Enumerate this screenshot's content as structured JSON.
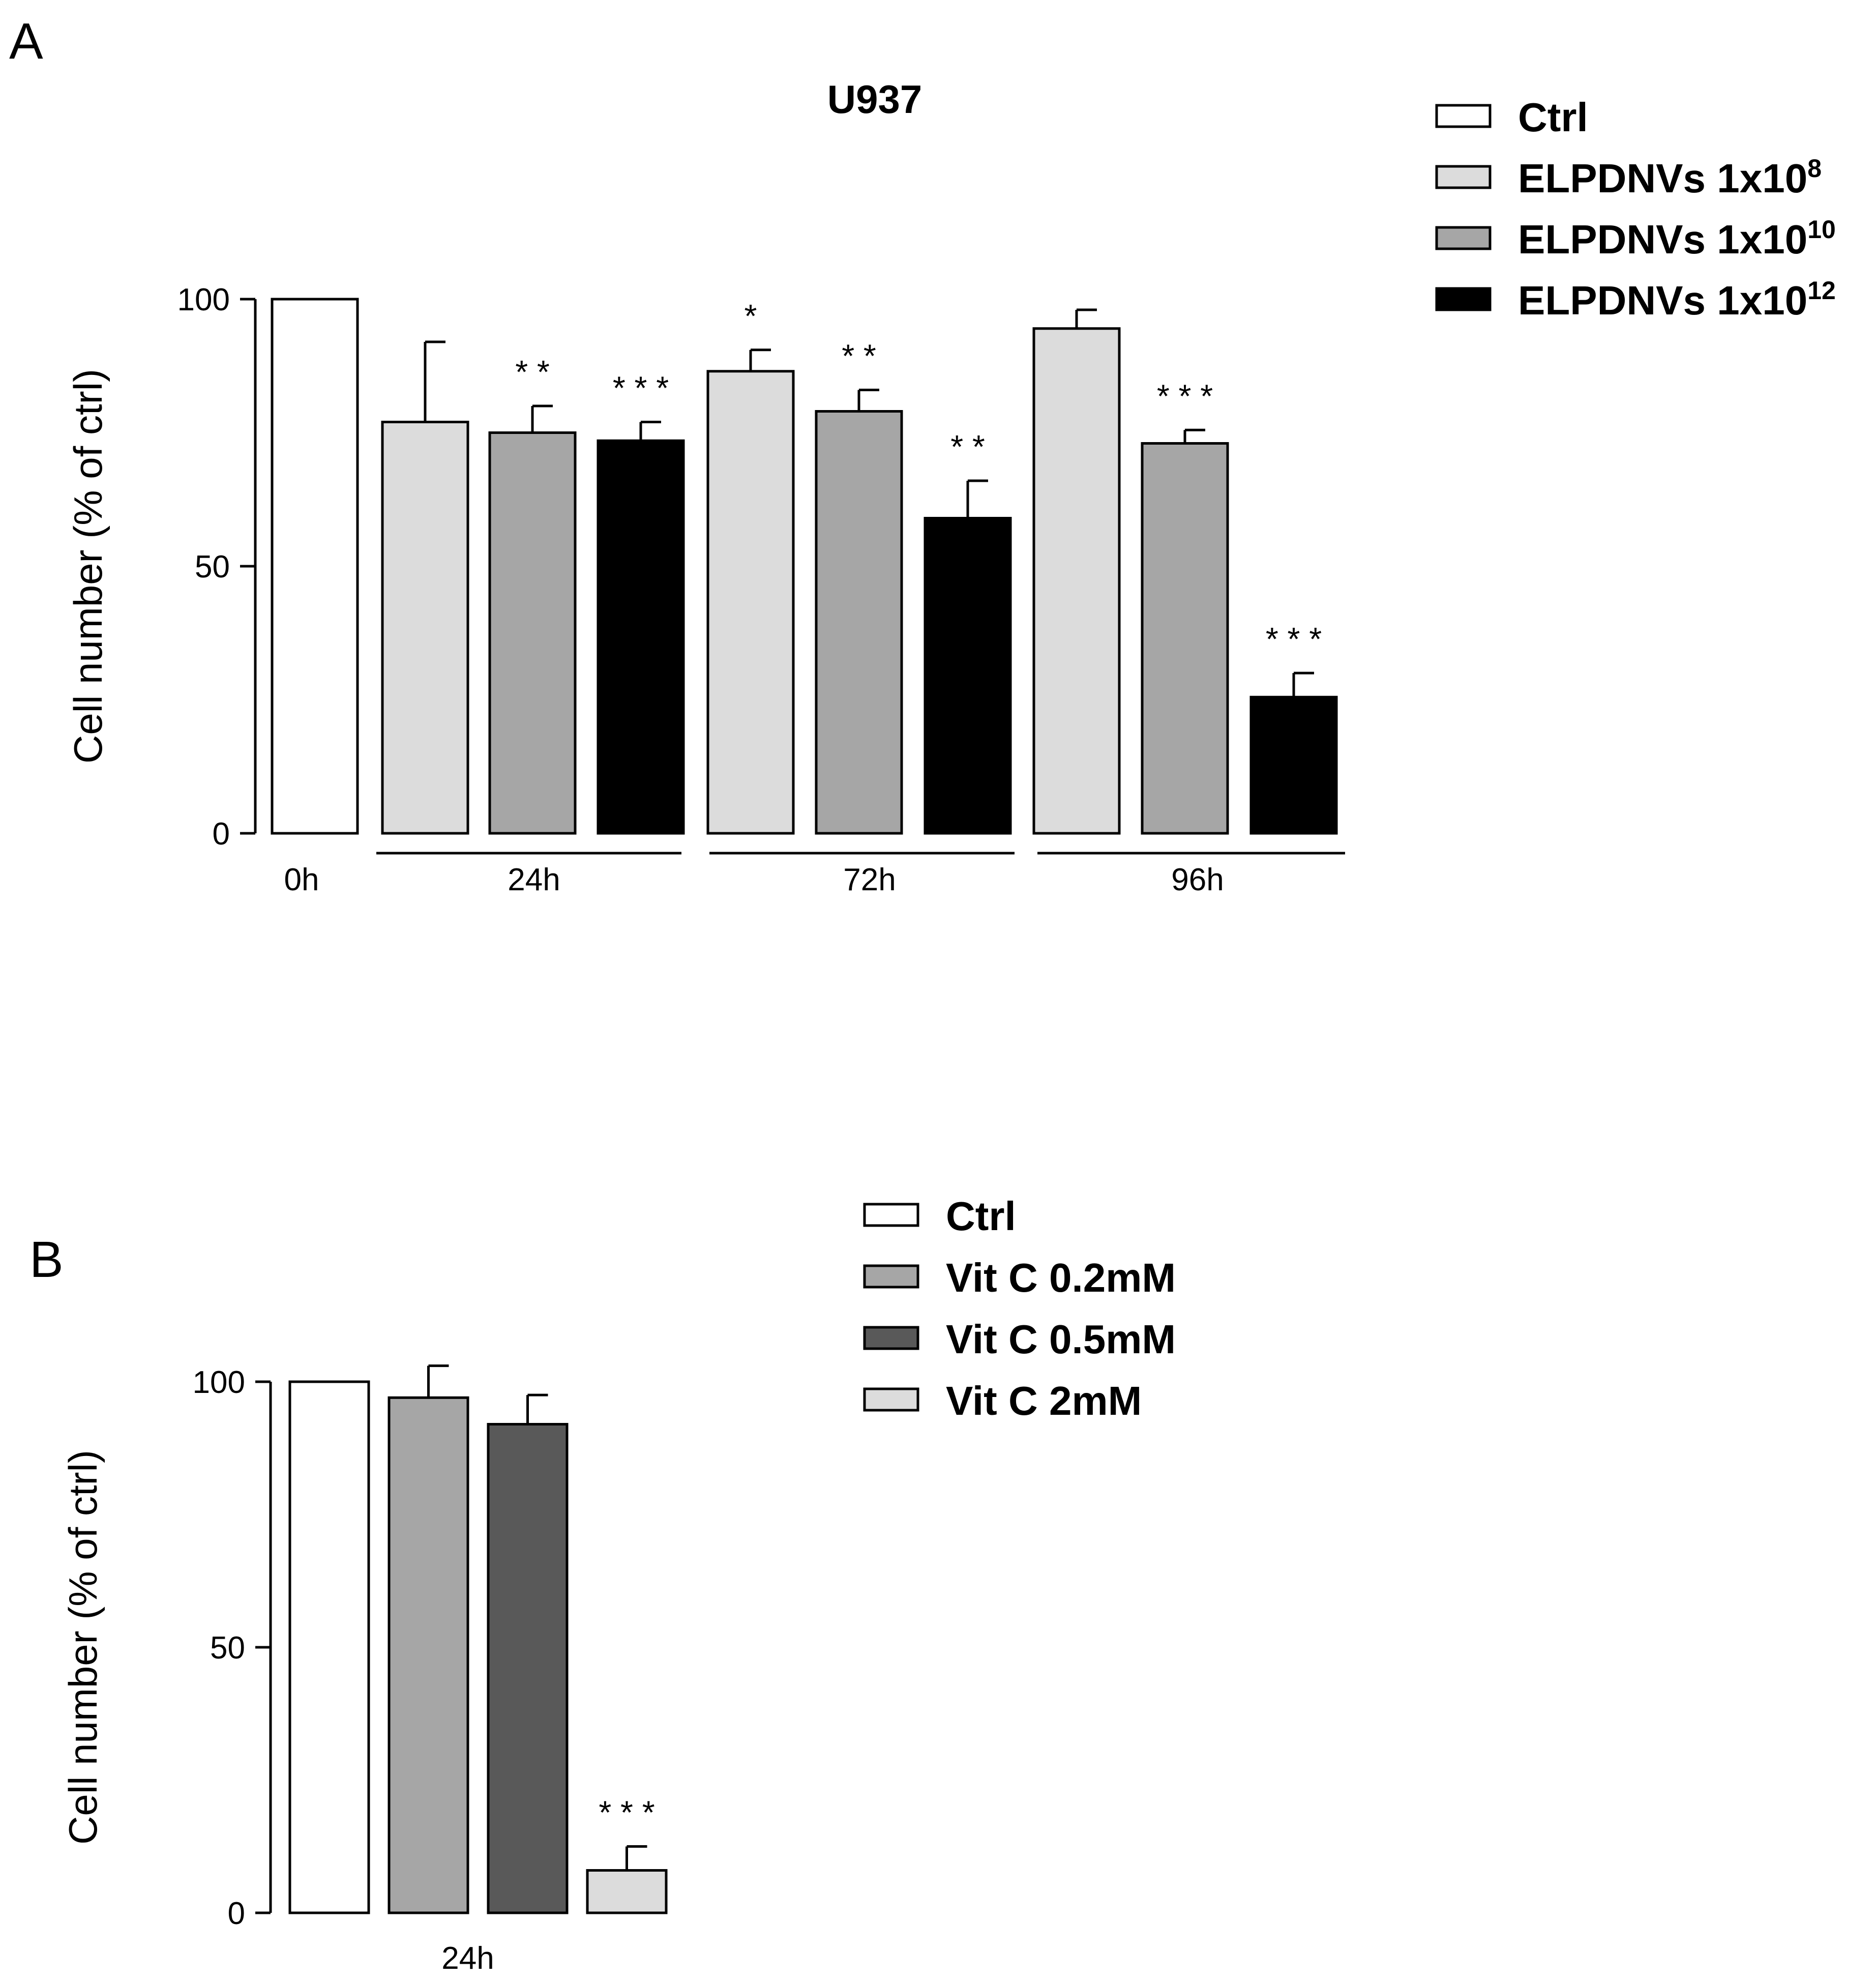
{
  "chart_data": [
    {
      "panel_label": "A",
      "type": "bar",
      "title": "U937",
      "ylabel": "Cell number (% of ctrl)",
      "ylim": [
        0,
        100
      ],
      "yticks": [
        "0",
        "50",
        "100"
      ],
      "groups": [
        "0h",
        "24h",
        "72h",
        "96h"
      ],
      "legend": [
        {
          "label": "Ctrl",
          "color": "#ffffff"
        },
        {
          "label": "ELPDNVs 1x10",
          "sup": "8",
          "color": "#dcdcdc"
        },
        {
          "label": "ELPDNVs 1x10",
          "sup": "10",
          "color": "#a6a6a6"
        },
        {
          "label": "ELPDNVs 1x10",
          "sup": "12",
          "color": "#000000"
        }
      ],
      "bars": [
        {
          "group": "0h",
          "series": "Ctrl",
          "value": 100,
          "error": 0,
          "sig": ""
        },
        {
          "group": "24h",
          "series": "ELPDNVs 1x10^8",
          "value": 77,
          "error": 15,
          "sig": ""
        },
        {
          "group": "24h",
          "series": "ELPDNVs 1x10^10",
          "value": 75,
          "error": 5,
          "sig": "**"
        },
        {
          "group": "24h",
          "series": "ELPDNVs 1x10^12",
          "value": 73.5,
          "error": 3.5,
          "sig": "***"
        },
        {
          "group": "72h",
          "series": "ELPDNVs 1x10^8",
          "value": 86.5,
          "error": 4,
          "sig": "*"
        },
        {
          "group": "72h",
          "series": "ELPDNVs 1x10^10",
          "value": 79,
          "error": 4,
          "sig": "**"
        },
        {
          "group": "72h",
          "series": "ELPDNVs 1x10^12",
          "value": 59,
          "error": 7,
          "sig": "**"
        },
        {
          "group": "96h",
          "series": "ELPDNVs 1x10^8",
          "value": 94.5,
          "error": 3.5,
          "sig": ""
        },
        {
          "group": "96h",
          "series": "ELPDNVs 1x10^10",
          "value": 73,
          "error": 2.5,
          "sig": "***"
        },
        {
          "group": "96h",
          "series": "ELPDNVs 1x10^12",
          "value": 25.5,
          "error": 4.5,
          "sig": "***"
        }
      ]
    },
    {
      "panel_label": "B",
      "type": "bar",
      "ylabel": "Cell number (% of ctrl)",
      "ylim": [
        0,
        100
      ],
      "yticks": [
        "0",
        "50",
        "100"
      ],
      "groups": [
        "24h"
      ],
      "legend": [
        {
          "label": "Ctrl",
          "color": "#ffffff"
        },
        {
          "label": "Vit C 0.2mM",
          "color": "#a6a6a6"
        },
        {
          "label": "Vit C 0.5mM",
          "color": "#595959"
        },
        {
          "label": "Vit C 2mM",
          "color": "#dcdcdc"
        }
      ],
      "bars": [
        {
          "group": "24h",
          "series": "Ctrl",
          "value": 100,
          "error": 0,
          "sig": ""
        },
        {
          "group": "24h",
          "series": "Vit C 0.2mM",
          "value": 97,
          "error": 6,
          "sig": ""
        },
        {
          "group": "24h",
          "series": "Vit C 0.5mM",
          "value": 92,
          "error": 5.5,
          "sig": ""
        },
        {
          "group": "24h",
          "series": "Vit C 2mM",
          "value": 8,
          "error": 4.5,
          "sig": "***"
        }
      ]
    }
  ]
}
